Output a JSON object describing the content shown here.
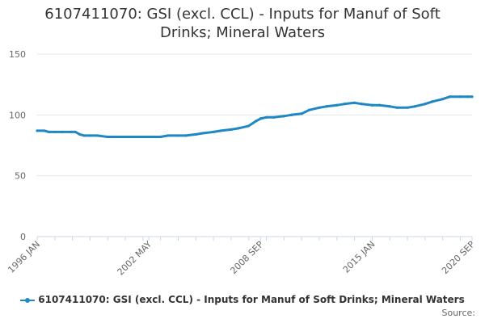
{
  "chart_data": {
    "type": "line",
    "title_line1": "6107411070: GSI (excl. CCL) - Inputs for Manuf of Soft",
    "title_line2": "Drinks; Mineral Waters",
    "xlabel": "",
    "ylabel": "",
    "ylim": [
      0,
      150
    ],
    "yticks": [
      0,
      50,
      100,
      150
    ],
    "xlim": [
      "1996-01",
      "2020-09"
    ],
    "xtick_labels": [
      {
        "date": "1996-01",
        "label": "1996 JAN"
      },
      {
        "date": "2002-05",
        "label": "2002 MAY"
      },
      {
        "date": "2008-09",
        "label": "2008 SEP"
      },
      {
        "date": "2015-01",
        "label": "2015 JAN"
      },
      {
        "date": "2020-09",
        "label": "2020 SEP"
      }
    ],
    "grid": "horizontal",
    "legend_position": "bottom",
    "series": [
      {
        "name": "6107411070: GSI (excl. CCL) - Inputs for Manuf of Soft Drinks; Mineral Waters",
        "color": "#1f88c4",
        "points": [
          [
            "1996-01",
            87
          ],
          [
            "1996-06",
            87
          ],
          [
            "1996-09",
            86
          ],
          [
            "1997-01",
            86
          ],
          [
            "1997-06",
            86
          ],
          [
            "1997-12",
            86
          ],
          [
            "1998-03",
            86
          ],
          [
            "1998-06",
            84
          ],
          [
            "1998-09",
            83
          ],
          [
            "1999-01",
            83
          ],
          [
            "1999-06",
            83
          ],
          [
            "2000-01",
            82
          ],
          [
            "2000-06",
            82
          ],
          [
            "2001-01",
            82
          ],
          [
            "2001-06",
            82
          ],
          [
            "2002-01",
            82
          ],
          [
            "2002-05",
            82
          ],
          [
            "2003-01",
            82
          ],
          [
            "2003-06",
            83
          ],
          [
            "2004-01",
            83
          ],
          [
            "2004-06",
            83
          ],
          [
            "2005-01",
            84
          ],
          [
            "2005-06",
            85
          ],
          [
            "2006-01",
            86
          ],
          [
            "2006-06",
            87
          ],
          [
            "2007-01",
            88
          ],
          [
            "2007-06",
            89
          ],
          [
            "2008-01",
            91
          ],
          [
            "2008-06",
            95
          ],
          [
            "2008-09",
            97
          ],
          [
            "2009-01",
            98
          ],
          [
            "2009-06",
            98
          ],
          [
            "2010-01",
            99
          ],
          [
            "2010-06",
            100
          ],
          [
            "2011-01",
            101
          ],
          [
            "2011-06",
            104
          ],
          [
            "2012-01",
            106
          ],
          [
            "2012-06",
            107
          ],
          [
            "2013-01",
            108
          ],
          [
            "2013-06",
            109
          ],
          [
            "2014-01",
            110
          ],
          [
            "2014-06",
            109
          ],
          [
            "2015-01",
            108
          ],
          [
            "2015-06",
            108
          ],
          [
            "2016-01",
            107
          ],
          [
            "2016-06",
            106
          ],
          [
            "2017-01",
            106
          ],
          [
            "2017-06",
            107
          ],
          [
            "2018-01",
            109
          ],
          [
            "2018-06",
            111
          ],
          [
            "2019-01",
            113
          ],
          [
            "2019-06",
            115
          ],
          [
            "2020-01",
            115
          ],
          [
            "2020-06",
            115
          ],
          [
            "2020-09",
            115
          ]
        ]
      }
    ]
  },
  "legend": {
    "label": "6107411070: GSI (excl. CCL) - Inputs for Manuf of Soft Drinks; Mineral Waters"
  },
  "source": {
    "label": "Source:"
  }
}
